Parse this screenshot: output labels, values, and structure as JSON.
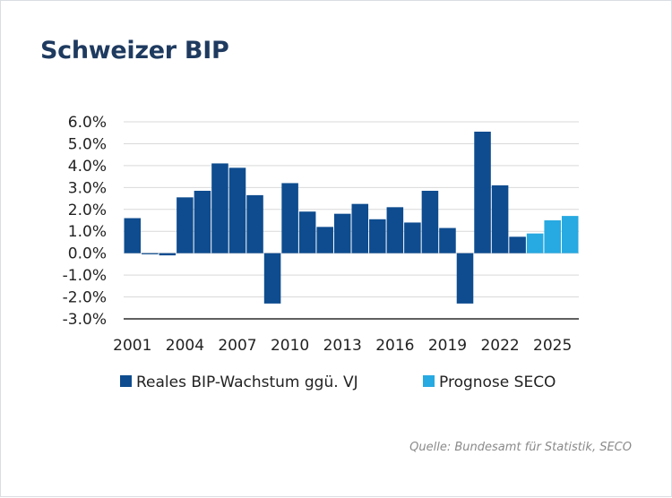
{
  "title": "Schweizer BIP",
  "source": "Quelle: Bundesamt für Statistik, SECO",
  "colors": {
    "actual": "#0e4c8f",
    "forecast": "#27a9e1",
    "title": "#1e3a5f",
    "grid": "#d9d9d9",
    "axis": "#000000"
  },
  "chart_data": {
    "type": "bar",
    "title": "Schweizer BIP",
    "xlabel": "",
    "ylabel": "",
    "ylim": [
      -3.0,
      6.0
    ],
    "yticks": [
      6.0,
      5.0,
      4.0,
      3.0,
      2.0,
      1.0,
      0.0,
      -1.0,
      -2.0,
      -3.0
    ],
    "ytick_labels": [
      "6.0%",
      "5.0%",
      "4.0%",
      "3.0%",
      "2.0%",
      "1.0%",
      "0.0%",
      "-1.0%",
      "-2.0%",
      "-3.0%"
    ],
    "categories": [
      "2001",
      "2002",
      "2003",
      "2004",
      "2005",
      "2006",
      "2007",
      "2008",
      "2009",
      "2010",
      "2011",
      "2012",
      "2013",
      "2014",
      "2015",
      "2016",
      "2017",
      "2018",
      "2019",
      "2020",
      "2021",
      "2022",
      "2023",
      "2024",
      "2025",
      "2026"
    ],
    "xtick_labels": [
      "2001",
      "2004",
      "2007",
      "2010",
      "2013",
      "2016",
      "2019",
      "2022",
      "2025"
    ],
    "series": [
      {
        "name": "Reales BIP-Wachstum ggü. VJ",
        "color": "#0e4c8f",
        "values": [
          1.6,
          -0.05,
          -0.1,
          2.55,
          2.85,
          4.1,
          3.9,
          2.65,
          -2.3,
          3.2,
          1.9,
          1.2,
          1.8,
          2.25,
          1.55,
          2.1,
          1.4,
          2.85,
          1.15,
          -2.3,
          5.55,
          3.1,
          0.75,
          null,
          null,
          null
        ]
      },
      {
        "name": "Prognose SECO",
        "color": "#27a9e1",
        "values": [
          null,
          null,
          null,
          null,
          null,
          null,
          null,
          null,
          null,
          null,
          null,
          null,
          null,
          null,
          null,
          null,
          null,
          null,
          null,
          null,
          null,
          null,
          null,
          0.9,
          1.5,
          1.7
        ]
      }
    ],
    "legend_position": "bottom"
  }
}
